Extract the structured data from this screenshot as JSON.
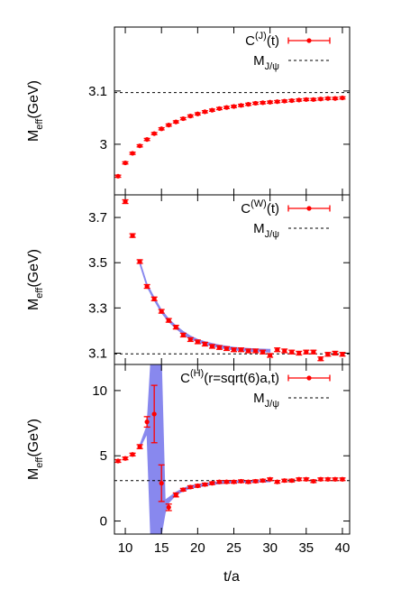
{
  "chart_data": [
    {
      "type": "scatter",
      "xlim": [
        8.5,
        41
      ],
      "ylim": [
        2.905,
        3.22
      ],
      "ylabel_main": "M",
      "ylabel_sub": "eff",
      "ylabel_unit": "(GeV)",
      "yticks": [
        {
          "v": 3.0,
          "label": "3"
        },
        {
          "v": 3.1,
          "label": "3.1"
        }
      ],
      "reference_line": 3.097,
      "legend": {
        "position": "top-right",
        "series_main": "C",
        "series_sup": "(J)",
        "series_tail": "(t)",
        "ref_main": "M",
        "ref_sub": "J/ψ"
      },
      "colors": {
        "points": "#ff0000",
        "band": "#8888ee",
        "reference": "#000000"
      },
      "x": [
        9,
        10,
        11,
        12,
        13,
        14,
        15,
        16,
        17,
        18,
        19,
        20,
        21,
        22,
        23,
        24,
        25,
        26,
        27,
        28,
        29,
        30,
        31,
        32,
        33,
        34,
        35,
        36,
        37,
        38,
        39,
        40
      ],
      "y": [
        2.94,
        2.965,
        2.983,
        2.997,
        3.009,
        3.02,
        3.029,
        3.036,
        3.042,
        3.048,
        3.053,
        3.057,
        3.061,
        3.064,
        3.067,
        3.069,
        3.071,
        3.073,
        3.075,
        3.077,
        3.078,
        3.079,
        3.08,
        3.081,
        3.082,
        3.083,
        3.084,
        3.084,
        3.085,
        3.086,
        3.086,
        3.087
      ],
      "err": [
        0.002,
        0.002,
        0.002,
        0.002,
        0.002,
        0.002,
        0.002,
        0.002,
        0.002,
        0.002,
        0.002,
        0.002,
        0.002,
        0.002,
        0.002,
        0.002,
        0.002,
        0.002,
        0.002,
        0.002,
        0.002,
        0.002,
        0.002,
        0.002,
        0.002,
        0.002,
        0.002,
        0.002,
        0.002,
        0.002,
        0.002,
        0.002
      ]
    },
    {
      "type": "scatter",
      "xlim": [
        8.5,
        41
      ],
      "ylim": [
        3.05,
        3.8
      ],
      "ylabel_main": "M",
      "ylabel_sub": "eff",
      "ylabel_unit": "(GeV)",
      "yticks": [
        {
          "v": 3.1,
          "label": "3.1"
        },
        {
          "v": 3.3,
          "label": "3.3"
        },
        {
          "v": 3.5,
          "label": "3.5"
        },
        {
          "v": 3.7,
          "label": "3.7"
        }
      ],
      "reference_line": 3.097,
      "legend": {
        "position": "top-right",
        "series_main": "C",
        "series_sup": "(W)",
        "series_tail": "(t)",
        "ref_main": "M",
        "ref_sub": "J/ψ"
      },
      "colors": {
        "points": "#ff0000",
        "band": "#8888ee",
        "reference": "#000000"
      },
      "band": {
        "x": [
          12,
          13,
          14,
          15,
          16,
          17,
          18,
          19,
          20,
          21,
          22,
          23,
          24,
          25,
          26,
          27,
          28,
          29,
          30
        ],
        "y": [
          3.5,
          3.4,
          3.34,
          3.285,
          3.245,
          3.215,
          3.19,
          3.17,
          3.155,
          3.145,
          3.137,
          3.13,
          3.125,
          3.12,
          3.117,
          3.115,
          3.113,
          3.112,
          3.111
        ],
        "halfwidth": [
          0.006,
          0.006,
          0.006,
          0.006,
          0.006,
          0.006,
          0.006,
          0.006,
          0.006,
          0.006,
          0.006,
          0.006,
          0.006,
          0.006,
          0.006,
          0.006,
          0.006,
          0.006,
          0.006
        ]
      },
      "x": [
        10,
        11,
        12,
        13,
        14,
        15,
        16,
        17,
        18,
        19,
        20,
        21,
        22,
        23,
        24,
        25,
        26,
        27,
        28,
        29,
        30,
        31,
        32,
        33,
        34,
        35,
        36,
        37,
        38,
        39,
        40
      ],
      "y": [
        3.77,
        3.62,
        3.505,
        3.395,
        3.34,
        3.285,
        3.245,
        3.215,
        3.18,
        3.16,
        3.15,
        3.14,
        3.13,
        3.125,
        3.12,
        3.115,
        3.115,
        3.11,
        3.11,
        3.105,
        3.09,
        3.115,
        3.11,
        3.105,
        3.1,
        3.105,
        3.105,
        3.075,
        3.095,
        3.1,
        3.095
      ],
      "err": [
        0.008,
        0.008,
        0.008,
        0.008,
        0.008,
        0.008,
        0.008,
        0.008,
        0.008,
        0.008,
        0.008,
        0.008,
        0.008,
        0.008,
        0.008,
        0.008,
        0.008,
        0.008,
        0.008,
        0.008,
        0.008,
        0.008,
        0.008,
        0.008,
        0.008,
        0.008,
        0.008,
        0.008,
        0.008,
        0.008,
        0.008
      ]
    },
    {
      "type": "scatter",
      "xlim": [
        8.5,
        41
      ],
      "ylim": [
        -1,
        12
      ],
      "ylabel_main": "M",
      "ylabel_sub": "eff",
      "ylabel_unit": "(GeV)",
      "xlabel": "t/a",
      "xticks": [
        10,
        15,
        20,
        25,
        30,
        35,
        40
      ],
      "yticks": [
        {
          "v": 0,
          "label": "0"
        },
        {
          "v": 5,
          "label": "5"
        },
        {
          "v": 10,
          "label": "10"
        }
      ],
      "reference_line": 3.097,
      "legend": {
        "position": "top-right",
        "series_main": "C",
        "series_sup": "(H)",
        "series_tail": "(r=sqrt(6)a,t)",
        "ref_main": "M",
        "ref_sub": "J/ψ"
      },
      "colors": {
        "points": "#ff0000",
        "band": "#8888ee",
        "reference": "#000000"
      },
      "band": {
        "x": [
          12,
          13,
          13.5,
          14,
          14.5,
          15,
          15.5,
          16,
          17,
          18,
          19,
          20,
          22,
          24,
          26,
          28,
          30
        ],
        "ylow": [
          5.6,
          6.7,
          -1,
          -1,
          -1,
          -1,
          0.6,
          1.4,
          2.0,
          2.3,
          2.5,
          2.6,
          2.8,
          2.9,
          2.95,
          3.0,
          3.0
        ],
        "yhigh": [
          5.8,
          7.3,
          12,
          12,
          12,
          12,
          1.6,
          1.8,
          2.2,
          2.5,
          2.7,
          2.8,
          2.95,
          3.05,
          3.1,
          3.1,
          3.12
        ]
      },
      "x": [
        9,
        10,
        11,
        12,
        13,
        14,
        15,
        16,
        17,
        18,
        19,
        20,
        21,
        22,
        23,
        24,
        25,
        26,
        27,
        28,
        29,
        30,
        31,
        32,
        33,
        34,
        35,
        36,
        37,
        38,
        39,
        40
      ],
      "y": [
        4.6,
        4.8,
        5.1,
        5.7,
        7.6,
        8.2,
        2.9,
        1.05,
        2.0,
        2.4,
        2.6,
        2.7,
        2.8,
        2.9,
        3.0,
        3.0,
        3.0,
        3.05,
        3.0,
        3.05,
        3.1,
        3.2,
        3.0,
        3.1,
        3.1,
        3.2,
        3.2,
        3.05,
        3.2,
        3.2,
        3.2,
        3.2
      ],
      "err": [
        0.1,
        0.1,
        0.1,
        0.15,
        0.4,
        2.2,
        1.4,
        0.25,
        0.15,
        0.1,
        0.1,
        0.1,
        0.1,
        0.1,
        0.1,
        0.1,
        0.1,
        0.1,
        0.1,
        0.1,
        0.1,
        0.1,
        0.1,
        0.1,
        0.1,
        0.1,
        0.1,
        0.1,
        0.1,
        0.1,
        0.1,
        0.1
      ]
    }
  ]
}
